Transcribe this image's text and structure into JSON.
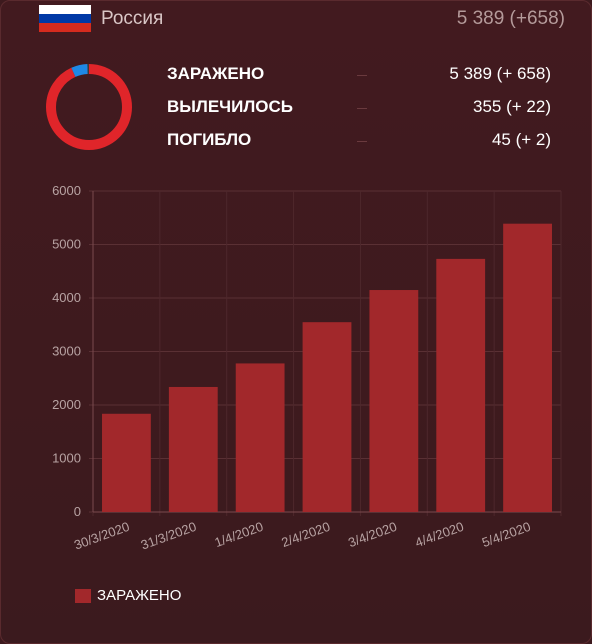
{
  "header": {
    "country": "Россия",
    "total": "5 389 (+658)",
    "flag_colors": [
      "#ffffff",
      "#0039a6",
      "#d52b1e"
    ]
  },
  "stats": [
    {
      "label": "ЗАРАЖЕНО",
      "value": "5 389 (+ 658)"
    },
    {
      "label": "ВЫЛЕЧИЛОСЬ",
      "value": "355 (+ 22)"
    },
    {
      "label": "ПОГИБЛО",
      "value": "45 (+ 2)"
    }
  ],
  "donut": {
    "segments": [
      {
        "name": "ЗАРАЖЕНО",
        "value": 5389,
        "color": "#e0252a"
      },
      {
        "name": "ВЫЛЕЧИЛОСЬ",
        "value": 355,
        "color": "#1e88e5"
      },
      {
        "name": "ПОГИБЛО",
        "value": 45,
        "color": "#3a3a3a"
      }
    ]
  },
  "chart_data": {
    "type": "bar",
    "categories": [
      "30/3/2020",
      "31/3/2020",
      "1/4/2020",
      "2/4/2020",
      "3/4/2020",
      "4/4/2020",
      "5/4/2020"
    ],
    "series": [
      {
        "name": "ЗАРАЖЕНО",
        "values": [
          1836,
          2337,
          2777,
          3548,
          4149,
          4731,
          5389
        ],
        "color": "#a2282b"
      }
    ],
    "ylim": [
      0,
      6000
    ],
    "yticks": [
      0,
      1000,
      2000,
      3000,
      4000,
      5000,
      6000
    ],
    "grid": true,
    "legend": "bottom-left"
  },
  "legend": {
    "label": "ЗАРАЖЕНО"
  }
}
